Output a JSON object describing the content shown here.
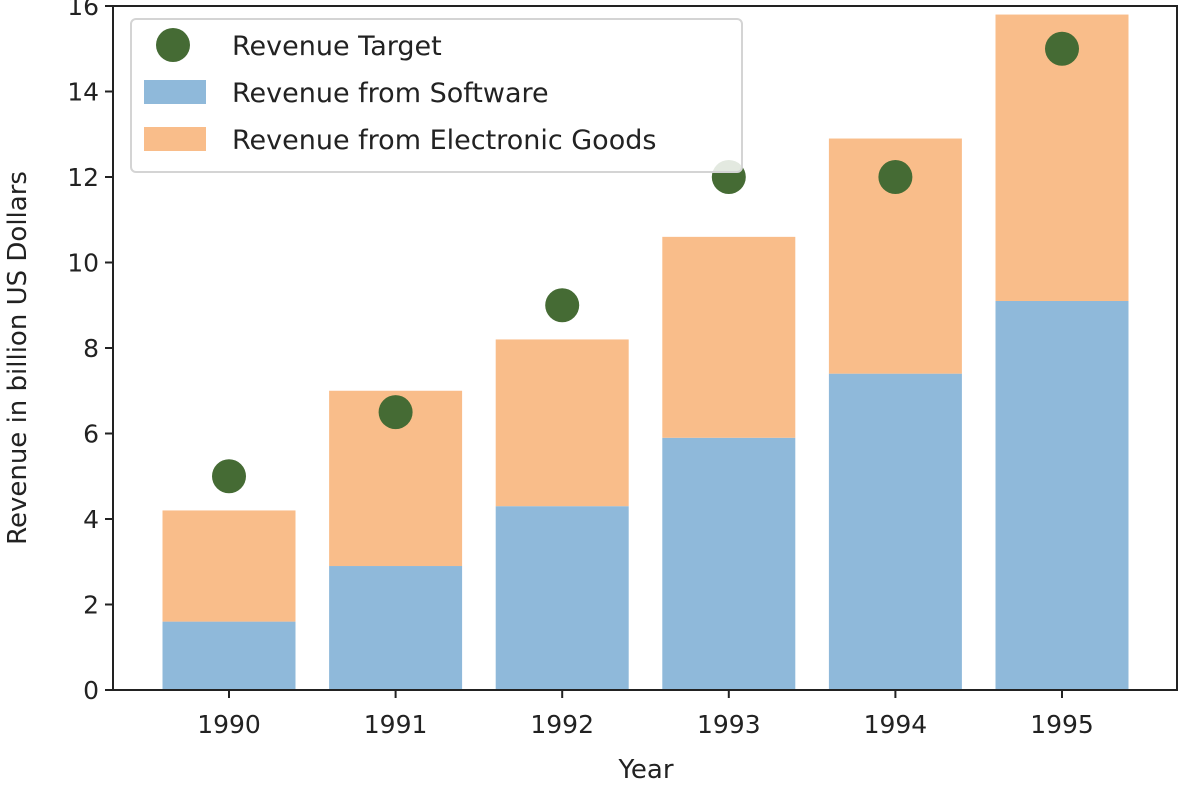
{
  "chart_data": {
    "type": "bar",
    "stacked": true,
    "title": "",
    "xlabel": "Year",
    "ylabel": "Revenue in billion US Dollars",
    "categories": [
      "1990",
      "1991",
      "1992",
      "1993",
      "1994",
      "1995"
    ],
    "ylim": [
      0,
      16
    ],
    "yticks": [
      "0",
      "2",
      "4",
      "6",
      "8",
      "10",
      "12",
      "14",
      "16"
    ],
    "series": [
      {
        "name": "Revenue from Software",
        "kind": "bar",
        "color": "#8fb9da",
        "values": [
          1.6,
          2.9,
          4.3,
          5.9,
          7.4,
          9.1
        ]
      },
      {
        "name": "Revenue from Electronic Goods",
        "kind": "bar",
        "color": "#f9bd8a",
        "values": [
          2.6,
          4.1,
          3.9,
          4.7,
          5.5,
          6.7
        ]
      },
      {
        "name": "Revenue Target",
        "kind": "scatter",
        "color": "#456b34",
        "values": [
          5,
          6.5,
          9,
          12,
          12,
          15
        ]
      }
    ],
    "grid": false,
    "legend": "top-left"
  }
}
